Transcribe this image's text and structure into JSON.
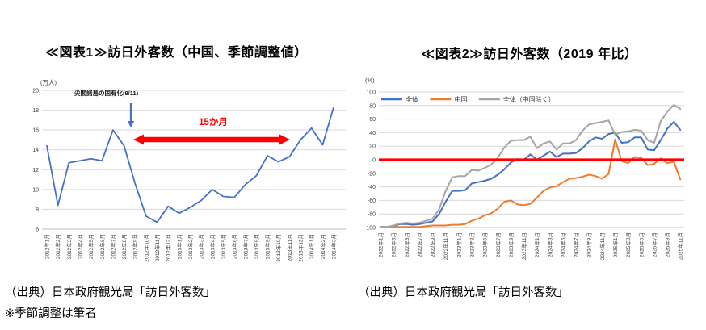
{
  "chart_data": [
    {
      "type": "line",
      "title": "≪図表1≫訪日外客数（中国、季節調整値）",
      "ylabel": "(万人)",
      "caption": "（出典）日本政府観光局「訪日外客数」",
      "note": "※季節調整は筆者",
      "annotation_event": "尖閣諸島の国有化(9/11)",
      "annotation_span": "15か月",
      "ylim": [
        6,
        20
      ],
      "yticks": [
        20,
        18,
        16,
        14,
        12,
        10,
        8,
        6
      ],
      "grid": true,
      "legend_position": "none",
      "label_every": 1,
      "x_labels": [
        "2012年1月",
        "2012年2月",
        "2012年3月",
        "2012年4月",
        "2012年5月",
        "2012年6月",
        "2012年7月",
        "2012年8月",
        "2012年9月",
        "2012年10月",
        "2012年11月",
        "2012年12月",
        "2013年1月",
        "2013年2月",
        "2013年3月",
        "2013年4月",
        "2013年5月",
        "2013年6月",
        "2013年7月",
        "2013年8月",
        "2013年9月",
        "2013年10月",
        "2013年11月",
        "2013年12月",
        "2014年1月",
        "2014年2月",
        "2014年3月"
      ],
      "series": [
        {
          "name": "中国",
          "key": "china-seasonally-adjusted",
          "color": "#4472C4",
          "width": 1.8,
          "values": [
            14.4,
            8.4,
            12.7,
            12.9,
            13.1,
            12.9,
            16.0,
            14.4,
            10.6,
            7.3,
            6.7,
            8.3,
            7.6,
            8.2,
            8.9,
            10.0,
            9.3,
            9.2,
            10.5,
            11.4,
            13.4,
            12.8,
            13.3,
            15.0,
            16.2,
            14.5,
            18.3
          ]
        }
      ]
    },
    {
      "type": "line",
      "title": "≪図表2≫訪日外客数（2019 年比）",
      "ylabel": "(%)",
      "caption": "（出典）日本政府観光局「訪日外客数」",
      "ylim": [
        -100,
        100
      ],
      "yticks": [
        100,
        80,
        60,
        40,
        20,
        0,
        -20,
        -40,
        -60,
        -80,
        -100
      ],
      "grid": true,
      "zero_line_color": "#FF0000",
      "legend_position": "top-left-inside",
      "label_every": 2,
      "x_labels": [
        "2022年1月",
        "2022年3月",
        "2022年5月",
        "2022年7月",
        "2022年9月",
        "2022年11月",
        "2023年1月",
        "2023年3月",
        "2023年5月",
        "2023年7月",
        "2023年9月",
        "2023年11月",
        "2024年1月",
        "2024年3月",
        "2024年5月",
        "2024年7月",
        "2024年9月",
        "2024年11月",
        "2025年1月",
        "2025年3月",
        "2025年5月",
        "2025年7月",
        "2025年9月",
        "2025年11月"
      ],
      "series": [
        {
          "name": "全体",
          "key": "total",
          "color": "#4472C4",
          "width": 2,
          "values": [
            -99,
            -99,
            -98,
            -95,
            -95,
            -96,
            -95,
            -93,
            -91,
            -80,
            -62,
            -46,
            -46,
            -45,
            -35,
            -33,
            -31,
            -28,
            -22,
            -14,
            -4,
            1,
            0,
            8,
            0,
            6,
            12,
            4,
            9,
            9,
            10,
            17,
            27,
            33,
            31,
            38,
            40,
            25,
            26,
            33,
            33,
            15,
            14,
            29,
            46,
            56,
            44
          ]
        },
        {
          "name": "中国",
          "key": "china",
          "color": "#ED7D31",
          "width": 2,
          "values": [
            -100,
            -100,
            -99,
            -99,
            -99,
            -99,
            -99,
            -98,
            -97,
            -97,
            -97,
            -96,
            -96,
            -95,
            -90,
            -87,
            -82,
            -79,
            -72,
            -62,
            -60,
            -66,
            -67,
            -65,
            -56,
            -46,
            -41,
            -39,
            -33,
            -28,
            -27,
            -25,
            -22,
            -24,
            -28,
            -21,
            30,
            -2,
            -5,
            4,
            3,
            -8,
            -6,
            2,
            -5,
            -3,
            -29
          ]
        },
        {
          "name": "全体（中国除く）",
          "key": "total-ex-china",
          "color": "#A5A5A5",
          "width": 2,
          "values": [
            -99,
            -99,
            -97,
            -94,
            -93,
            -94,
            -93,
            -90,
            -87,
            -73,
            -46,
            -26,
            -24,
            -24,
            -15,
            -16,
            -12,
            -7,
            3,
            18,
            28,
            29,
            29,
            34,
            17,
            24,
            27,
            15,
            24,
            24,
            29,
            43,
            52,
            54,
            56,
            58,
            37,
            41,
            42,
            44,
            43,
            29,
            25,
            57,
            71,
            81,
            75
          ]
        }
      ]
    }
  ]
}
